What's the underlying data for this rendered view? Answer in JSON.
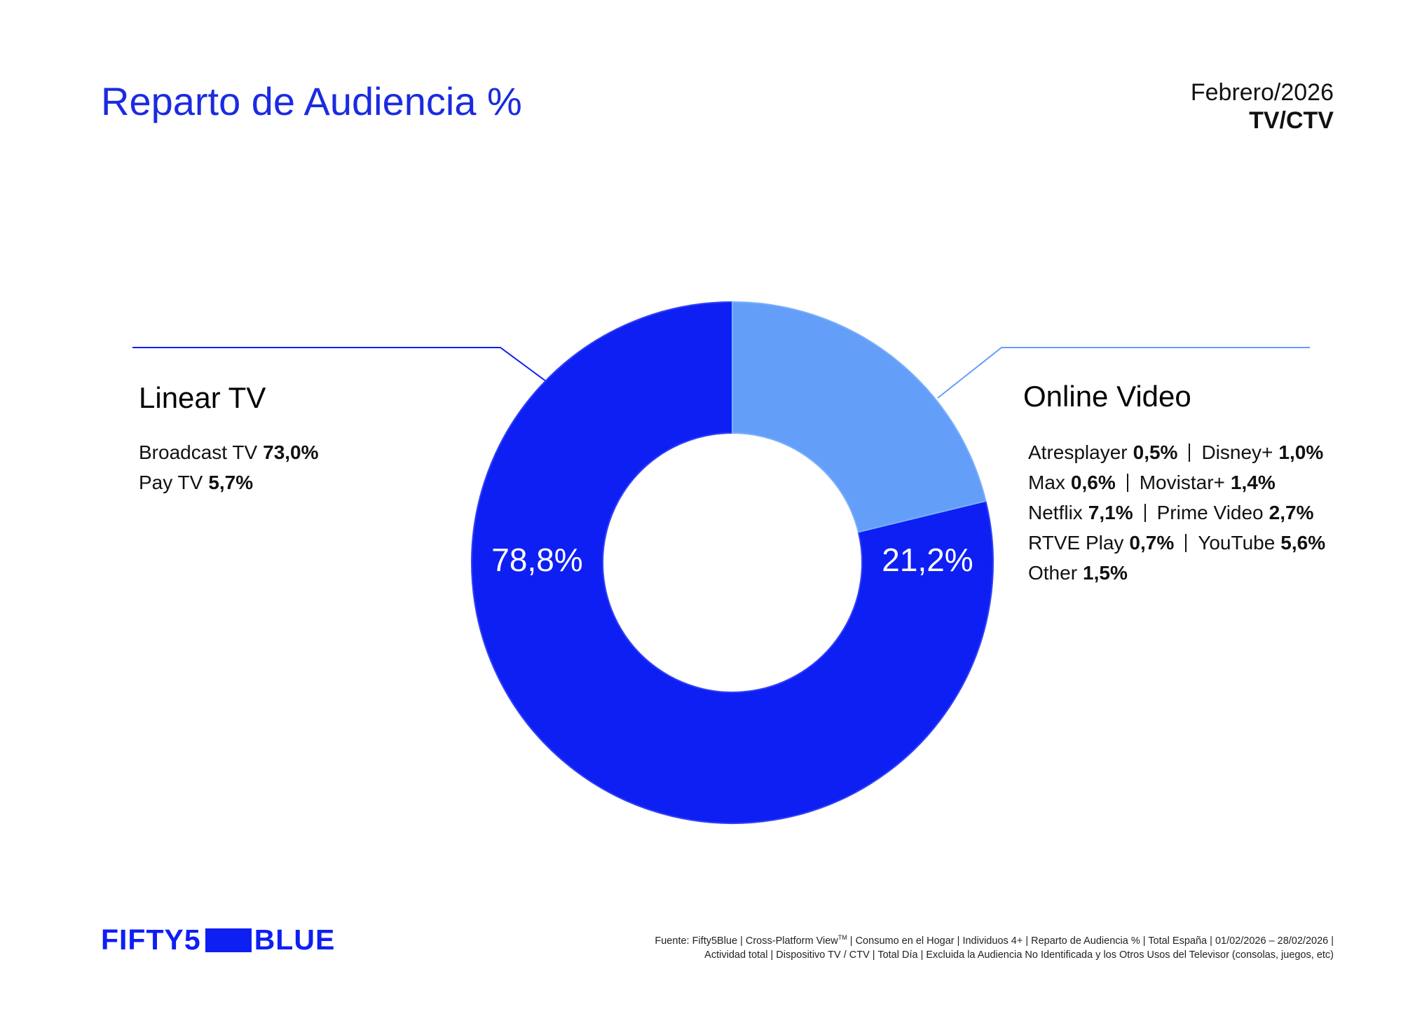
{
  "chart_data": {
    "type": "donut",
    "title": "Reparto de Audiencia %",
    "period": "Febrero/2026",
    "scope": "TV/CTV",
    "categories": [
      "Linear TV",
      "Online Video"
    ],
    "values": [
      78.8,
      21.2
    ],
    "value_labels": [
      "78,8%",
      "21,2%"
    ],
    "colors": [
      "#0e1ff4",
      "#639ef9"
    ],
    "breakdowns": [
      {
        "items": [
          {
            "name": "Broadcast TV",
            "share": "73,0%"
          },
          {
            "name": "Pay TV",
            "share": "5,7%"
          }
        ],
        "per_row": 1
      },
      {
        "items": [
          {
            "name": "Atresplayer",
            "share": "0,5%"
          },
          {
            "name": "Disney+",
            "share": "1,0%"
          },
          {
            "name": "Max",
            "share": "0,6%"
          },
          {
            "name": "Movistar+",
            "share": "1,4%"
          },
          {
            "name": "Netflix",
            "share": "7,1%"
          },
          {
            "name": "Prime Video",
            "share": "2,7%"
          },
          {
            "name": "RTVE Play",
            "share": "0,7%"
          },
          {
            "name": "YouTube",
            "share": "5,6%"
          },
          {
            "name": "Other",
            "share": "1,5%"
          }
        ],
        "per_row": 2
      }
    ]
  },
  "footer": {
    "logo": [
      "FIFTY5",
      "BLUE"
    ],
    "source": {
      "line1": "Fuente: Fifty5Blue | Cross-Platform View",
      "mark": "TM",
      "line1_rest": " | Consumo en el Hogar | Individuos 4+ | Reparto de Audiencia % | Total España | 01/02/2026 – 28/02/2026 |",
      "line2": "Actividad total | Dispositivo TV / CTV | Total Día | Excluida la Audiencia No Identificada y los Otros Usos del Televisor (consolas, juegos, etc)"
    }
  }
}
